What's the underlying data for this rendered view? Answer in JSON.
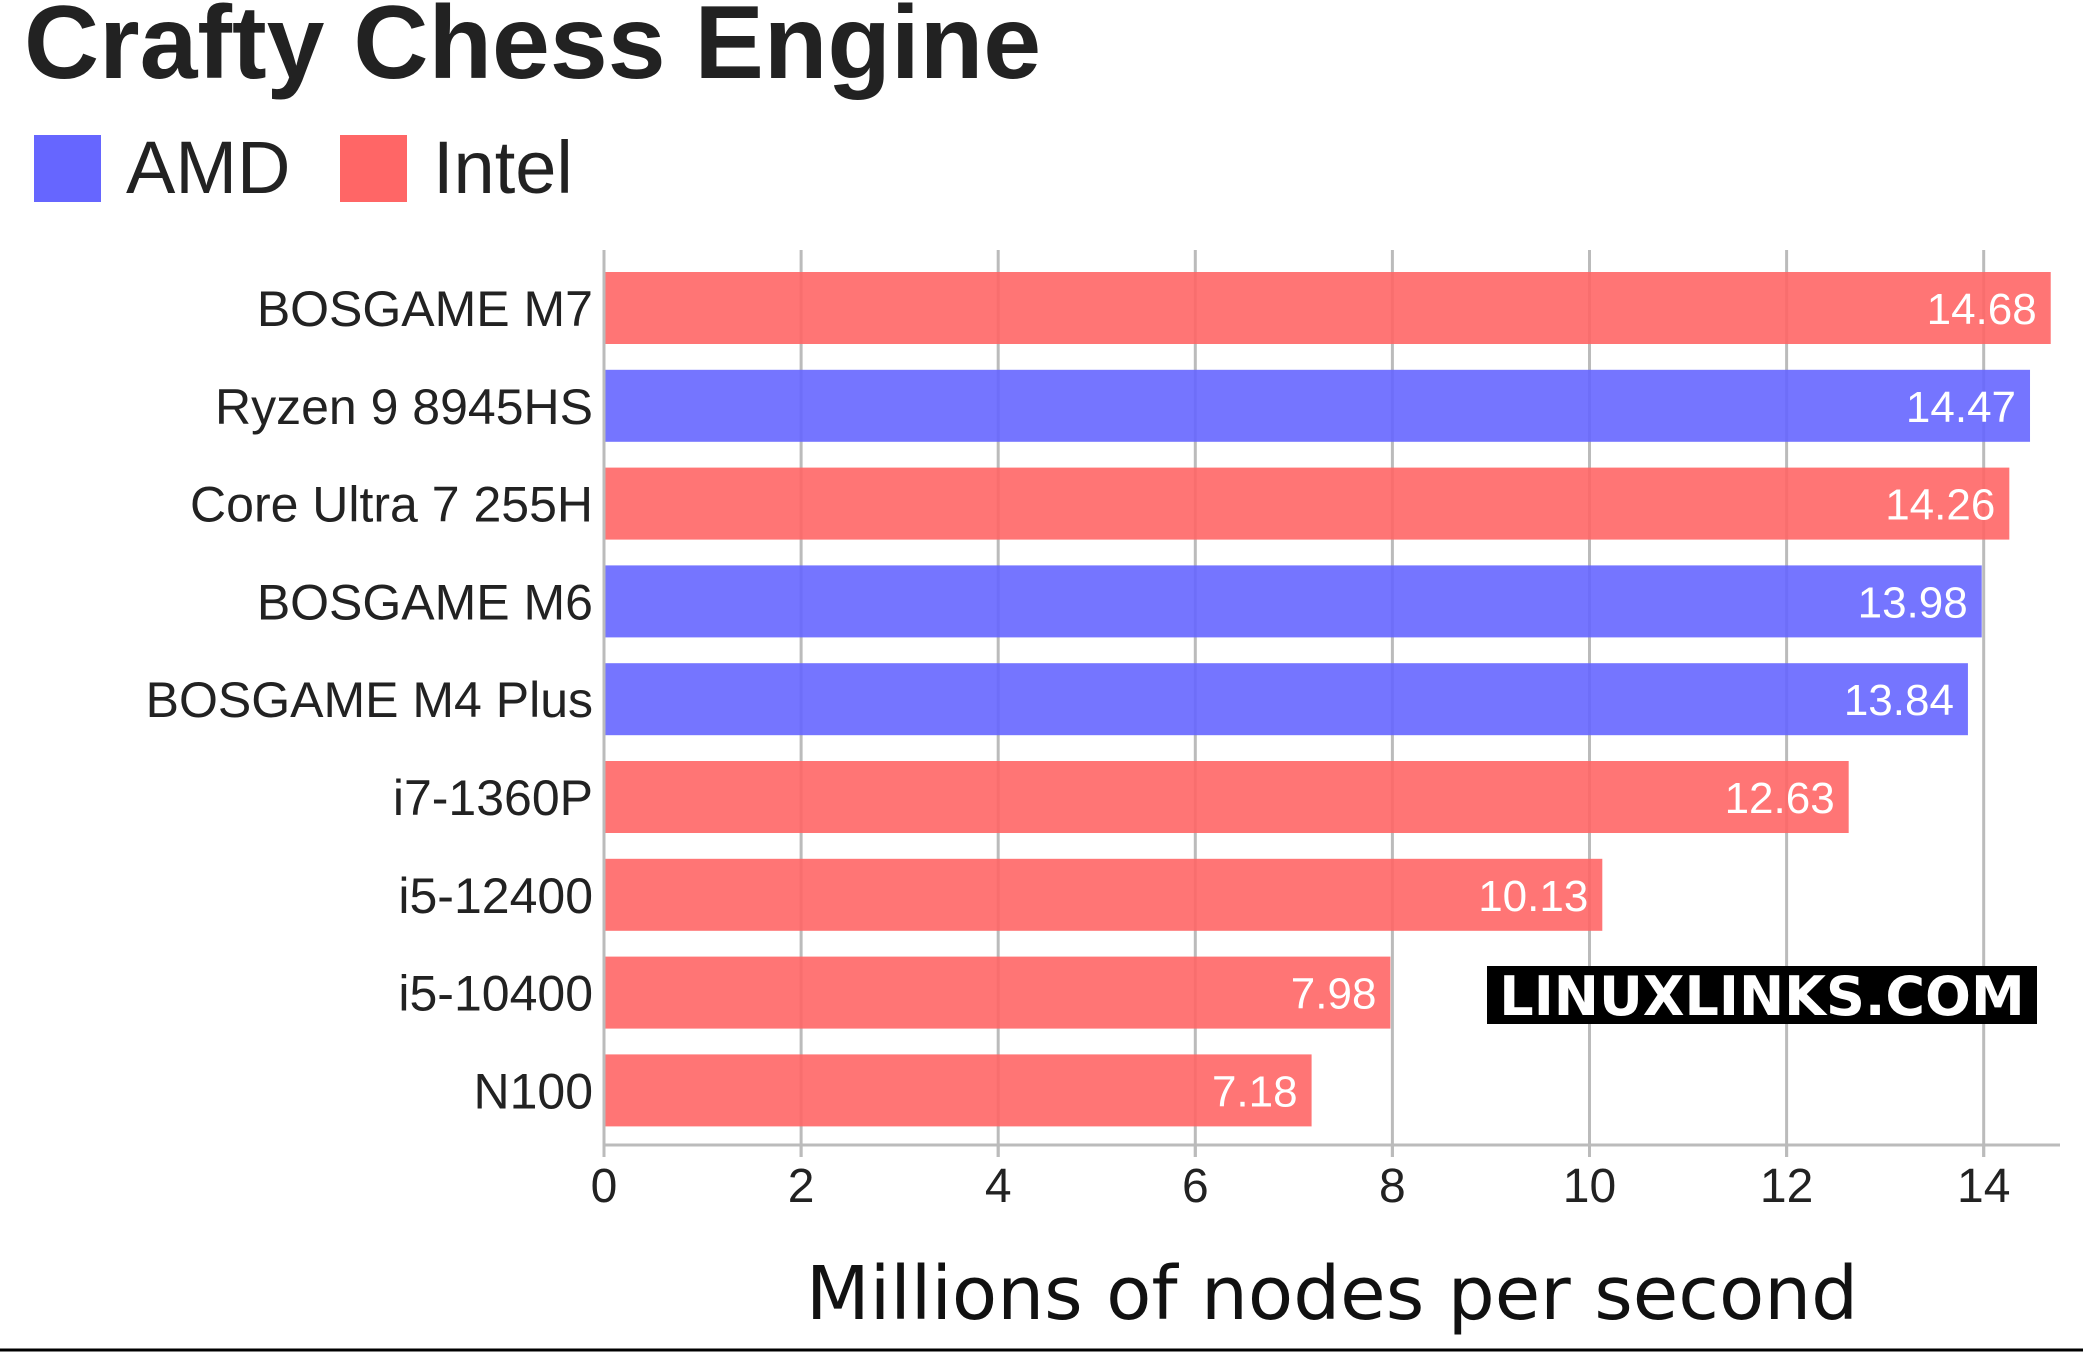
{
  "chart_data": {
    "type": "bar",
    "orientation": "horizontal",
    "title": "Crafty Chess Engine",
    "xlabel": "Millions of nodes per second",
    "ylabel": "",
    "xlim": [
      0,
      14.68
    ],
    "x_ticks": [
      0,
      2,
      4,
      6,
      8,
      10,
      12,
      14
    ],
    "grid": "vertical",
    "legend": {
      "placement": "top-left",
      "entries": [
        {
          "label": "AMD",
          "color": "#6666ff"
        },
        {
          "label": "Intel",
          "color": "#ff6666"
        }
      ]
    },
    "categories": [
      "BOSGAME M7",
      "Ryzen 9 8945HS",
      "Core Ultra 7 255H",
      "BOSGAME M6",
      "BOSGAME M4 Plus",
      "i7-1360P",
      "i5-12400",
      "i5-10400",
      "N100"
    ],
    "values": [
      14.68,
      14.47,
      14.26,
      13.98,
      13.84,
      12.63,
      10.13,
      7.98,
      7.18
    ],
    "value_labels": [
      "14.68",
      "14.47",
      "14.26",
      "13.98",
      "13.84",
      "12.63",
      "10.13",
      "7.98",
      "7.18"
    ],
    "groups": [
      "Intel",
      "AMD",
      "Intel",
      "AMD",
      "AMD",
      "Intel",
      "Intel",
      "Intel",
      "Intel"
    ],
    "colors": {
      "AMD": "#6666ff",
      "Intel": "#ff6666",
      "grid": "#bbbbbb",
      "axis": "#bbbbbb",
      "text": "#222222",
      "value_label": "#ffffff"
    }
  },
  "watermark": {
    "text": "LINUXLINKS.COM"
  }
}
